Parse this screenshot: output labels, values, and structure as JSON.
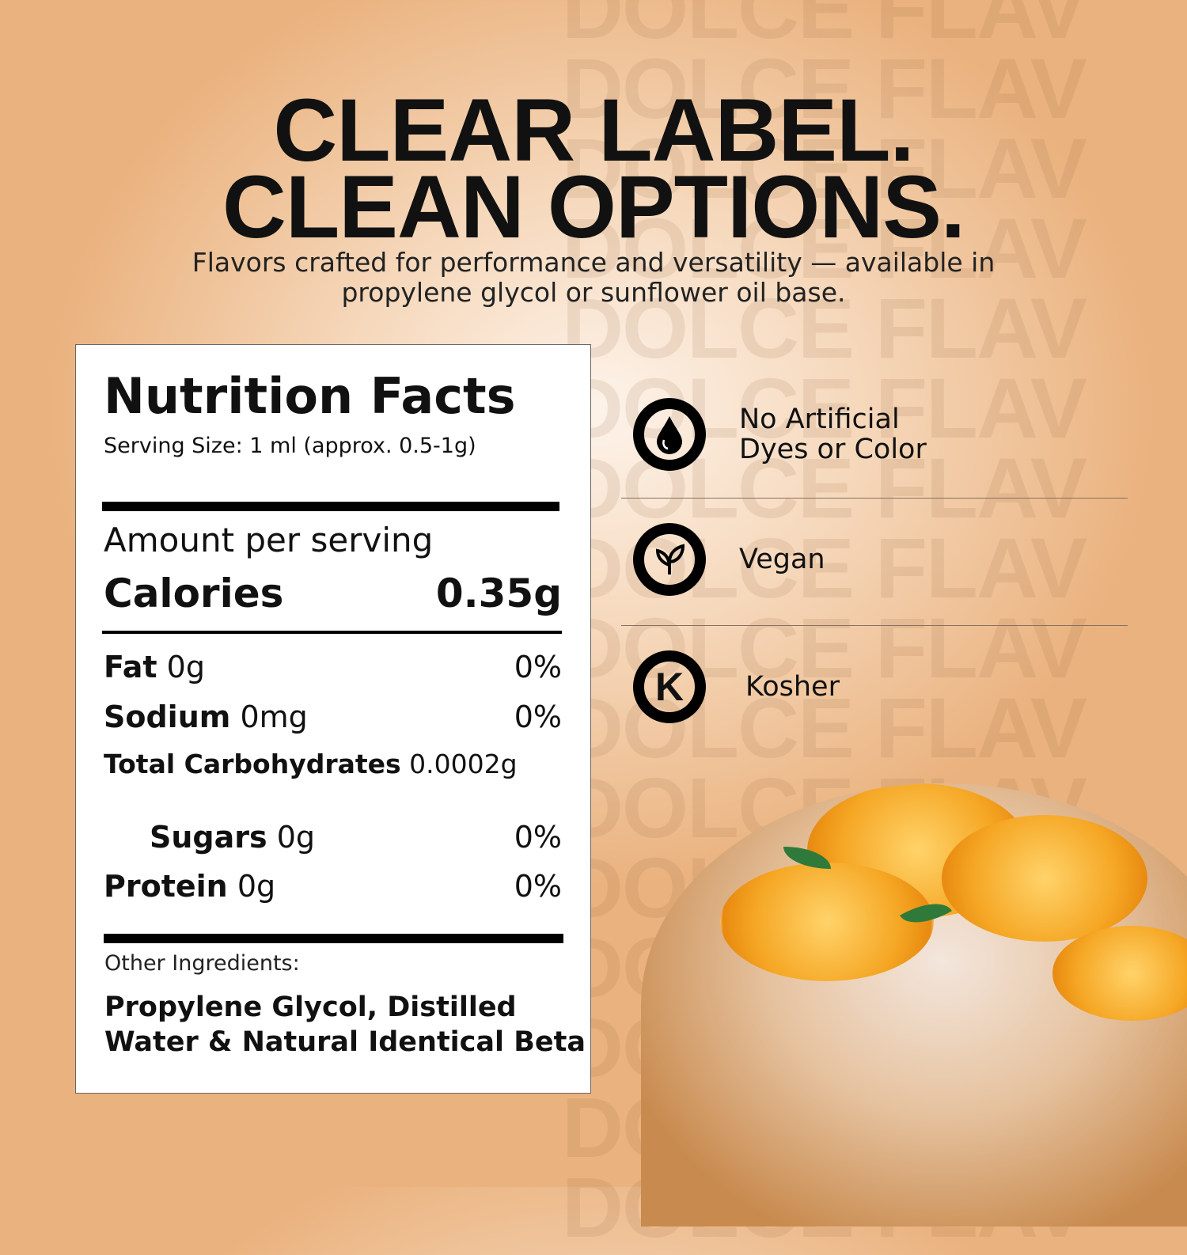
{
  "watermark": "DOLCE FLAV",
  "headline": {
    "line1": "CLEAR LABEL.",
    "line2": "CLEAN OPTIONS."
  },
  "subtitle": {
    "line1": "Flavors crafted for performance and versatility — available in",
    "line2": "propylene glycol or sunflower oil base."
  },
  "nutrition": {
    "title": "Nutrition Facts",
    "serving_size": "Serving Size: 1 ml (approx. 0.5-1g)",
    "amount_per_serving": "Amount per serving",
    "calories": {
      "label": "Calories",
      "value": "0.35g"
    },
    "rows": [
      {
        "label": "Fat",
        "amount": "0g",
        "dv": "0%"
      },
      {
        "label": "Sodium",
        "amount": "0mg",
        "dv": "0%"
      },
      {
        "label": "Total Carbohydrates",
        "amount": "0.0002g",
        "dv": ""
      },
      {
        "label": "Sugars",
        "amount": "0g",
        "dv": "0%"
      },
      {
        "label": "Protein",
        "amount": "0g",
        "dv": "0%"
      }
    ],
    "other_label": "Other Ingredients:",
    "ingredients_line1": "Propylene Glycol, Distilled",
    "ingredients_line2": "Water & Natural Identical Beta"
  },
  "features": [
    {
      "icon": "drop-icon",
      "line1": "No Artificial",
      "line2": "Dyes or Color"
    },
    {
      "icon": "leaf-icon",
      "line1": "Vegan"
    },
    {
      "icon": "kosher-k-icon",
      "line1": "Kosher"
    }
  ]
}
